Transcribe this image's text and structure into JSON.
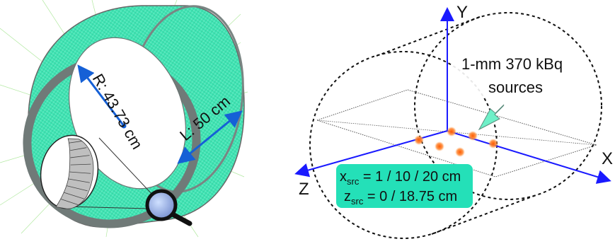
{
  "left_panel": {
    "radius_label": "R: 43.73 cm",
    "length_label": "L: 50 cm"
  },
  "right_panel": {
    "axes": {
      "x": "X",
      "y": "Y",
      "z": "Z"
    },
    "sources_label_line1": "1-mm 370 kBq",
    "sources_label_line2": "sources",
    "src_box": {
      "x_main": "x",
      "x_sub": "src",
      "x_rest": " = 1 / 10 / 20 cm",
      "z_main": "z",
      "z_sub": "src",
      "z_rest": " = 0 / 18.75 cm"
    }
  },
  "colors": {
    "cylinder_fill": "#3fe6b4",
    "ring": "#707a78",
    "dimension_arrow": "#1560d6",
    "axis_arrow": "#1a1aff",
    "source_dot": "#ff7a1a",
    "label_box": "#24e0b8"
  }
}
